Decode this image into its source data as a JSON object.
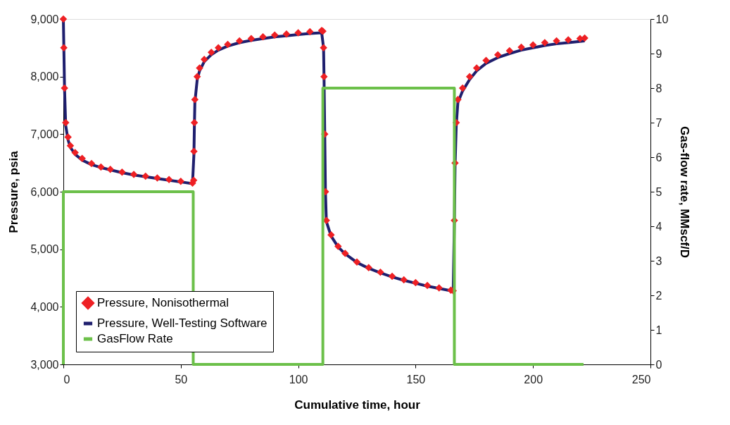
{
  "chart_data": {
    "type": "line",
    "xlabel": "Cumulative time, hour",
    "ylabel": "Pressure, psia",
    "y2label": "Gas-flow rate, MMscf/D",
    "xlim": [
      0,
      250
    ],
    "xticks": [
      0,
      50,
      100,
      150,
      200,
      250
    ],
    "ylim": [
      3000,
      9000
    ],
    "yticks": [
      {
        "value": 3000,
        "label": "3,000"
      },
      {
        "value": 4000,
        "label": "4,000"
      },
      {
        "value": 5000,
        "label": "5,000"
      },
      {
        "value": 6000,
        "label": "6,000"
      },
      {
        "value": 7000,
        "label": "7,000"
      },
      {
        "value": 8000,
        "label": "8,000"
      },
      {
        "value": 9000,
        "label": "9,000"
      }
    ],
    "y2lim": [
      0,
      10
    ],
    "y2ticks": [
      0,
      1,
      2,
      3,
      4,
      5,
      6,
      7,
      8,
      9,
      10
    ],
    "grid": false,
    "legend": "bottom left",
    "series": [
      {
        "name": "Pressure, Nonisothermal",
        "type": "scatter",
        "marker": "diamond",
        "color": "#ee2024",
        "x": [
          0,
          0.2,
          0.5,
          1,
          2,
          3,
          5,
          8,
          12,
          16,
          20,
          25,
          30,
          35,
          40,
          45,
          50,
          55,
          55.5,
          55.6,
          55.8,
          56,
          57,
          58,
          60,
          63,
          66,
          70,
          75,
          80,
          85,
          90,
          95,
          100,
          105,
          110,
          110.5,
          110.8,
          111,
          111.3,
          111.6,
          112,
          114,
          117,
          120,
          125,
          130,
          135,
          140,
          145,
          150,
          155,
          160,
          165,
          166,
          166.5,
          166.8,
          167.3,
          168,
          170,
          173,
          176,
          180,
          185,
          190,
          195,
          200,
          205,
          210,
          215,
          220,
          222
        ],
        "values": [
          9000,
          8500,
          7800,
          7200,
          6950,
          6800,
          6680,
          6580,
          6490,
          6430,
          6390,
          6340,
          6300,
          6270,
          6240,
          6210,
          6180,
          6150,
          6200,
          6700,
          7200,
          7600,
          8000,
          8150,
          8300,
          8420,
          8500,
          8560,
          8620,
          8660,
          8690,
          8720,
          8740,
          8760,
          8780,
          8800,
          8790,
          8500,
          8000,
          7000,
          6000,
          5500,
          5250,
          5050,
          4930,
          4780,
          4680,
          4600,
          4530,
          4470,
          4420,
          4370,
          4330,
          4290,
          4280,
          5500,
          6500,
          7200,
          7600,
          7800,
          8000,
          8150,
          8280,
          8380,
          8450,
          8510,
          8550,
          8590,
          8620,
          8640,
          8660,
          8670
        ]
      },
      {
        "name": "Pressure, Well-Testing Software",
        "color": "#1f1f6e",
        "x": [
          0,
          0.5,
          1,
          2,
          3,
          5,
          8,
          12,
          16,
          20,
          25,
          30,
          35,
          40,
          45,
          50,
          55,
          55.6,
          55.8,
          56,
          57,
          58,
          60,
          63,
          66,
          70,
          75,
          80,
          85,
          90,
          95,
          100,
          105,
          110,
          110.8,
          111,
          111.3,
          111.6,
          112,
          114,
          117,
          120,
          125,
          130,
          135,
          140,
          145,
          150,
          155,
          160,
          165,
          166,
          166.5,
          166.8,
          167.3,
          168,
          170,
          173,
          176,
          180,
          185,
          190,
          195,
          200,
          205,
          210,
          215,
          220,
          222
        ],
        "values": [
          9000,
          7800,
          7150,
          6900,
          6770,
          6650,
          6550,
          6470,
          6420,
          6380,
          6330,
          6290,
          6260,
          6230,
          6200,
          6170,
          6140,
          6650,
          7150,
          7550,
          7950,
          8100,
          8260,
          8380,
          8460,
          8530,
          8590,
          8630,
          8660,
          8690,
          8710,
          8730,
          8750,
          8760,
          8500,
          8000,
          7000,
          6000,
          5480,
          5230,
          5040,
          4920,
          4770,
          4670,
          4590,
          4520,
          4460,
          4410,
          4360,
          4320,
          4280,
          4270,
          5450,
          6450,
          7150,
          7550,
          7750,
          7950,
          8100,
          8230,
          8330,
          8400,
          8460,
          8500,
          8540,
          8570,
          8590,
          8610,
          8620
        ]
      },
      {
        "name": "GasFlow Rate",
        "axis": "y2",
        "color": "#6cc04a",
        "x": [
          0,
          0,
          55.3,
          55.3,
          110.5,
          110.5,
          166.5,
          166.5,
          221.5
        ],
        "values": [
          0,
          5,
          5,
          0,
          0,
          8,
          8,
          0,
          0
        ]
      }
    ]
  }
}
